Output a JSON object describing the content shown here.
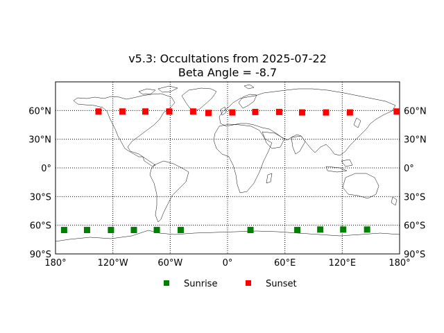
{
  "chart_data": {
    "type": "scatter",
    "title": "v5.3: Occultations from 2025-07-22",
    "subtitle": "Beta Angle = -8.7",
    "xlim": [
      -180,
      180
    ],
    "ylim": [
      -90,
      90
    ],
    "x_ticks": [
      {
        "value": -180,
        "label": "180°"
      },
      {
        "value": -120,
        "label": "120°W"
      },
      {
        "value": -60,
        "label": "60°W"
      },
      {
        "value": 0,
        "label": "0°"
      },
      {
        "value": 60,
        "label": "60°E"
      },
      {
        "value": 120,
        "label": "120°E"
      },
      {
        "value": 180,
        "label": "180°"
      }
    ],
    "y_ticks": [
      {
        "value": 60,
        "label": "60°N"
      },
      {
        "value": 30,
        "label": "30°N"
      },
      {
        "value": 0,
        "label": "0°"
      },
      {
        "value": -30,
        "label": "30°S"
      },
      {
        "value": -60,
        "label": "60°S"
      },
      {
        "value": -90,
        "label": "90°S"
      }
    ],
    "grid": true,
    "legend_position": "bottom-center",
    "basemap": "world-coastlines",
    "series": [
      {
        "name": "Sunrise",
        "color": "#008000",
        "marker": "square",
        "points": [
          {
            "x": -171,
            "y": -65
          },
          {
            "x": -147,
            "y": -65
          },
          {
            "x": -122,
            "y": -65
          },
          {
            "x": -98,
            "y": -65
          },
          {
            "x": -74,
            "y": -65
          },
          {
            "x": -49,
            "y": -65
          },
          {
            "x": 24,
            "y": -65
          },
          {
            "x": 73,
            "y": -65
          },
          {
            "x": 97,
            "y": -64.5
          },
          {
            "x": 121,
            "y": -64.5
          },
          {
            "x": 146,
            "y": -64.5
          }
        ]
      },
      {
        "name": "Sunset",
        "color": "#ff0000",
        "marker": "square",
        "points": [
          {
            "x": -135,
            "y": 59
          },
          {
            "x": -110,
            "y": 59
          },
          {
            "x": -86,
            "y": 59
          },
          {
            "x": -61,
            "y": 59
          },
          {
            "x": -36,
            "y": 59
          },
          {
            "x": -20,
            "y": 57.5
          },
          {
            "x": 5,
            "y": 58
          },
          {
            "x": 29,
            "y": 58.5
          },
          {
            "x": 54,
            "y": 58.5
          },
          {
            "x": 78,
            "y": 58
          },
          {
            "x": 103,
            "y": 58
          },
          {
            "x": 128,
            "y": 58
          },
          {
            "x": 177,
            "y": 59
          }
        ]
      }
    ]
  }
}
